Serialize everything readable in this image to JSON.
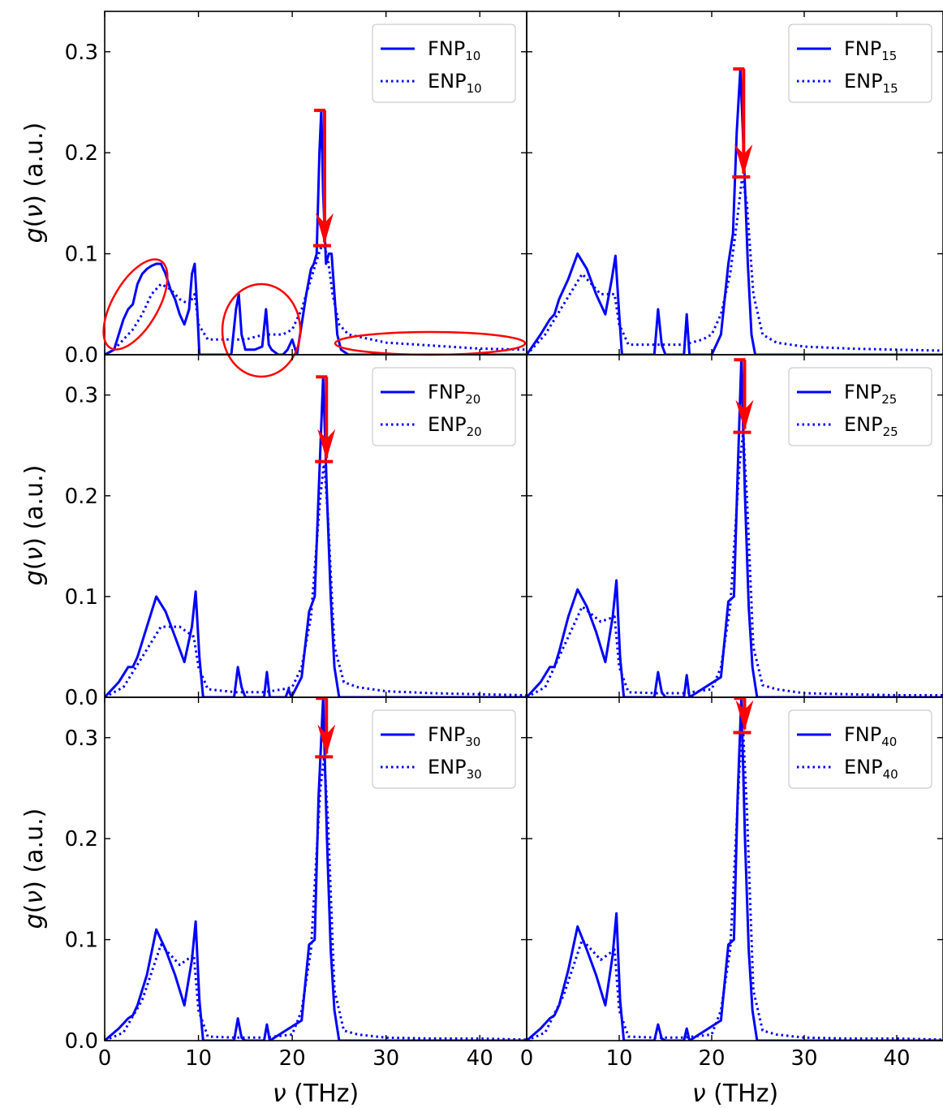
{
  "colors": {
    "fnp": "#0000ff",
    "enp": "#0000ff",
    "annotation": "#ff0000",
    "axes": "#000000"
  },
  "figure": {
    "xlabel_italic": "ν",
    "xlabel_units": "(THz)",
    "ylabel_func": "g",
    "ylabel_arg": "ν",
    "ylabel_units": "(a.u.)"
  },
  "chart_data": [
    {
      "type": "line",
      "panel": "top-left",
      "xlim": [
        0,
        45
      ],
      "ylim": [
        0,
        0.34
      ],
      "xticks": [
        "0",
        "10",
        "20",
        "30",
        "40"
      ],
      "yticks": [
        "0.0",
        "0.1",
        "0.2",
        "0.3"
      ],
      "legend": {
        "placement": "top-right",
        "fnp_base": "FNP",
        "enp_base": "ENP",
        "sub": "10"
      },
      "peak": {
        "x": 23.1,
        "fnp": 0.242,
        "enp": 0.108
      },
      "highlight_ellipses": 3,
      "series": [
        {
          "name": "FNP10",
          "style": "solid",
          "x": [
            0,
            1,
            1.5,
            2,
            2.5,
            3,
            3.5,
            4,
            4.5,
            5,
            5.5,
            6,
            6.5,
            7,
            7.5,
            8,
            8.5,
            9,
            9.3,
            9.6,
            9.9,
            10.1,
            10.5,
            13.5,
            14,
            14.3,
            14.6,
            15,
            16,
            16.8,
            17.2,
            17.5,
            17.8,
            18.5,
            19,
            19.5,
            20,
            20.5,
            21,
            21.5,
            22,
            22.3,
            22.6,
            22.9,
            23.1,
            23.3,
            23.6,
            23.9,
            24.2,
            24.5,
            24.8,
            25.2,
            26,
            45
          ],
          "y": [
            0,
            0.005,
            0.02,
            0.035,
            0.045,
            0.05,
            0.07,
            0.08,
            0.085,
            0.088,
            0.09,
            0.09,
            0.08,
            0.065,
            0.055,
            0.04,
            0.03,
            0.045,
            0.08,
            0.09,
            0.04,
            0,
            0,
            0,
            0.045,
            0.06,
            0.02,
            0.005,
            0.005,
            0.008,
            0.045,
            0.01,
            0.005,
            0,
            0,
            0.005,
            0.015,
            0,
            0.03,
            0.06,
            0.085,
            0.09,
            0.1,
            0.2,
            0.242,
            0.16,
            0.09,
            0.1,
            0.1,
            0.06,
            0.02,
            0.005,
            0,
            0
          ]
        },
        {
          "name": "ENP10",
          "style": "dotted",
          "x": [
            0,
            1,
            2,
            3,
            4,
            5,
            6,
            7,
            8,
            9,
            9.6,
            10,
            11,
            13,
            15,
            17,
            19,
            20,
            21,
            22,
            22.5,
            23,
            23.4,
            23.8,
            24.3,
            25,
            26,
            27,
            28,
            30,
            35,
            40,
            45
          ],
          "y": [
            0,
            0.005,
            0.015,
            0.025,
            0.04,
            0.06,
            0.07,
            0.065,
            0.055,
            0.05,
            0.06,
            0.03,
            0.015,
            0.015,
            0.015,
            0.02,
            0.02,
            0.025,
            0.045,
            0.075,
            0.09,
            0.105,
            0.108,
            0.095,
            0.06,
            0.03,
            0.02,
            0.018,
            0.016,
            0.012,
            0.009,
            0.006,
            0.005
          ]
        }
      ]
    },
    {
      "type": "line",
      "panel": "top-right",
      "xlim": [
        0,
        45
      ],
      "ylim": [
        0,
        0.34
      ],
      "xticks": [
        "0",
        "10",
        "20",
        "30",
        "40"
      ],
      "yticks": [
        "0.0",
        "0.1",
        "0.2",
        "0.3"
      ],
      "legend": {
        "placement": "top-right",
        "fnp_base": "FNP",
        "enp_base": "ENP",
        "sub": "15"
      },
      "peak": {
        "x": 23.1,
        "fnp": 0.283,
        "enp": 0.176
      },
      "series": [
        {
          "name": "FNP15",
          "style": "solid",
          "x": [
            0,
            1.5,
            2.5,
            3,
            3.5,
            4.5,
            5.5,
            6.5,
            7.5,
            8.5,
            9.2,
            9.6,
            10,
            10.3,
            13.8,
            14.2,
            14.6,
            15,
            17,
            17.3,
            17.6,
            20,
            21,
            21.8,
            22.3,
            22.7,
            23.1,
            23.5,
            23.9,
            24.3,
            24.7,
            45
          ],
          "y": [
            0,
            0.02,
            0.035,
            0.04,
            0.055,
            0.075,
            0.1,
            0.085,
            0.06,
            0.04,
            0.075,
            0.098,
            0.04,
            0,
            0,
            0.045,
            0.01,
            0,
            0,
            0.04,
            0,
            0,
            0.02,
            0.09,
            0.12,
            0.22,
            0.283,
            0.19,
            0.09,
            0.02,
            0,
            0
          ]
        },
        {
          "name": "ENP15",
          "style": "dotted",
          "x": [
            0,
            2,
            4,
            6,
            8,
            9.5,
            10,
            11,
            14,
            17,
            19,
            20,
            21,
            22,
            22.7,
            23.3,
            23.8,
            24.5,
            25.5,
            27,
            30,
            35,
            40,
            45
          ],
          "y": [
            0,
            0.02,
            0.05,
            0.08,
            0.06,
            0.06,
            0.03,
            0.01,
            0.01,
            0.01,
            0.015,
            0.02,
            0.04,
            0.08,
            0.13,
            0.176,
            0.15,
            0.06,
            0.02,
            0.012,
            0.008,
            0.006,
            0.005,
            0.004
          ]
        }
      ]
    },
    {
      "type": "line",
      "panel": "middle-left",
      "xlim": [
        0,
        45
      ],
      "ylim": [
        0,
        0.34
      ],
      "xticks": [
        "0",
        "10",
        "20",
        "30",
        "40"
      ],
      "yticks": [
        "0.0",
        "0.1",
        "0.2",
        "0.3"
      ],
      "legend": {
        "placement": "top-right",
        "fnp_base": "FNP",
        "enp_base": "ENP",
        "sub": "20"
      },
      "peak": {
        "x": 23.3,
        "fnp": 0.318,
        "enp": 0.234
      },
      "series": [
        {
          "name": "FNP20",
          "style": "solid",
          "x": [
            0,
            1.5,
            2.5,
            3,
            3.5,
            4.5,
            5.5,
            6.5,
            7.5,
            8.5,
            9.3,
            9.7,
            10.1,
            10.5,
            13.8,
            14.2,
            14.6,
            15,
            17,
            17.3,
            17.6,
            19.3,
            19.6,
            19.9,
            21,
            21.8,
            22.4,
            22.8,
            23.3,
            23.7,
            24.1,
            24.5,
            25,
            45
          ],
          "y": [
            0,
            0.015,
            0.03,
            0.03,
            0.04,
            0.07,
            0.1,
            0.085,
            0.06,
            0.035,
            0.07,
            0.105,
            0.04,
            0,
            0,
            0.03,
            0.01,
            0,
            0,
            0.025,
            0,
            0,
            0.008,
            0,
            0.02,
            0.085,
            0.1,
            0.2,
            0.318,
            0.2,
            0.1,
            0.03,
            0,
            0
          ]
        },
        {
          "name": "ENP20",
          "style": "dotted",
          "x": [
            0,
            2,
            4,
            6,
            8,
            9.5,
            10,
            11,
            14,
            17,
            19,
            20,
            21,
            22,
            23,
            23.4,
            23.8,
            24.5,
            25.5,
            27,
            30,
            35,
            40,
            45
          ],
          "y": [
            0,
            0.01,
            0.04,
            0.07,
            0.07,
            0.06,
            0.03,
            0.008,
            0.005,
            0.005,
            0.008,
            0.01,
            0.03,
            0.08,
            0.2,
            0.234,
            0.18,
            0.05,
            0.015,
            0.01,
            0.006,
            0.004,
            0.003,
            0.002
          ]
        }
      ]
    },
    {
      "type": "line",
      "panel": "middle-right",
      "xlim": [
        0,
        45
      ],
      "ylim": [
        0,
        0.34
      ],
      "xticks": [
        "0",
        "10",
        "20",
        "30",
        "40"
      ],
      "yticks": [
        "0.0",
        "0.1",
        "0.2",
        "0.3"
      ],
      "legend": {
        "placement": "top-right",
        "fnp_base": "FNP",
        "enp_base": "ENP",
        "sub": "25"
      },
      "peak": {
        "x": 23.2,
        "fnp": 0.335,
        "enp": 0.263
      },
      "series": [
        {
          "name": "FNP25",
          "style": "solid",
          "x": [
            0,
            1.5,
            2.5,
            3,
            3.5,
            4.5,
            5.5,
            6.5,
            7.5,
            8.5,
            9.3,
            9.7,
            10.1,
            10.5,
            13.8,
            14.2,
            14.6,
            15,
            17,
            17.3,
            17.6,
            21,
            21.8,
            22.4,
            22.8,
            23.2,
            23.6,
            24,
            24.4,
            24.9,
            45
          ],
          "y": [
            0,
            0.015,
            0.03,
            0.03,
            0.045,
            0.08,
            0.107,
            0.09,
            0.065,
            0.035,
            0.08,
            0.116,
            0.04,
            0,
            0,
            0.025,
            0.005,
            0,
            0,
            0.022,
            0,
            0.02,
            0.095,
            0.1,
            0.22,
            0.335,
            0.2,
            0.09,
            0.03,
            0,
            0
          ]
        },
        {
          "name": "ENP25",
          "style": "dotted",
          "x": [
            0,
            2,
            4,
            6,
            8,
            9.5,
            10,
            11,
            14,
            17,
            20,
            21,
            22,
            23,
            23.4,
            23.8,
            24.5,
            25.5,
            27,
            30,
            35,
            40,
            45
          ],
          "y": [
            0,
            0.01,
            0.05,
            0.09,
            0.075,
            0.08,
            0.03,
            0.005,
            0.004,
            0.004,
            0.008,
            0.03,
            0.09,
            0.23,
            0.263,
            0.2,
            0.05,
            0.012,
            0.008,
            0.004,
            0.003,
            0.002,
            0.002
          ]
        }
      ]
    },
    {
      "type": "line",
      "panel": "bottom-left",
      "xlim": [
        0,
        45
      ],
      "ylim": [
        0,
        0.34
      ],
      "xticks": [
        "0",
        "10",
        "20",
        "30",
        "40"
      ],
      "yticks": [
        "0.0",
        "0.1",
        "0.2",
        "0.3"
      ],
      "legend": {
        "placement": "top-right",
        "fnp_base": "FNP",
        "enp_base": "ENP",
        "sub": "30"
      },
      "peak": {
        "x": 23.3,
        "fnp": 0.34,
        "enp": 0.281
      },
      "series": [
        {
          "name": "FNP30",
          "style": "solid",
          "x": [
            0,
            1.5,
            2.5,
            3,
            3.5,
            4.5,
            5.5,
            6.5,
            7.5,
            8.5,
            9.3,
            9.7,
            10.1,
            10.5,
            13.8,
            14.2,
            14.6,
            15,
            17,
            17.3,
            17.6,
            21,
            21.8,
            22.4,
            22.8,
            23.3,
            23.7,
            24.1,
            24.5,
            25,
            45
          ],
          "y": [
            0,
            0.012,
            0.022,
            0.025,
            0.035,
            0.065,
            0.11,
            0.09,
            0.065,
            0.035,
            0.08,
            0.118,
            0.04,
            0,
            0,
            0.022,
            0.003,
            0,
            0,
            0.016,
            0,
            0.02,
            0.095,
            0.1,
            0.24,
            0.34,
            0.2,
            0.09,
            0.03,
            0,
            0
          ]
        },
        {
          "name": "ENP30",
          "style": "dotted",
          "x": [
            0,
            2,
            4,
            6,
            8,
            9.5,
            10,
            11,
            14,
            17,
            20,
            21,
            22,
            23,
            23.4,
            23.8,
            24.5,
            25.5,
            27,
            30,
            35,
            40,
            45
          ],
          "y": [
            0,
            0.008,
            0.04,
            0.095,
            0.075,
            0.085,
            0.03,
            0.004,
            0.003,
            0.003,
            0.006,
            0.03,
            0.09,
            0.25,
            0.281,
            0.22,
            0.05,
            0.01,
            0.006,
            0.003,
            0.002,
            0.002,
            0.001
          ]
        }
      ]
    },
    {
      "type": "line",
      "panel": "bottom-right",
      "xlim": [
        0,
        45
      ],
      "ylim": [
        0,
        0.34
      ],
      "xticks": [
        "0",
        "10",
        "20",
        "30",
        "40"
      ],
      "yticks": [
        "0.0",
        "0.1",
        "0.2",
        "0.3"
      ],
      "legend": {
        "placement": "top-right",
        "fnp_base": "FNP",
        "enp_base": "ENP",
        "sub": "40"
      },
      "peak": {
        "x": 23.2,
        "fnp": 0.34,
        "enp": 0.305
      },
      "series": [
        {
          "name": "FNP40",
          "style": "solid",
          "x": [
            0,
            1.5,
            2.5,
            3,
            3.5,
            4.5,
            5.5,
            6.5,
            7.5,
            8.5,
            9.3,
            9.7,
            10.1,
            10.5,
            13.8,
            14.2,
            14.6,
            15,
            17,
            17.3,
            17.6,
            21,
            21.8,
            22.4,
            22.8,
            23.2,
            23.6,
            24,
            24.4,
            24.9,
            45
          ],
          "y": [
            0,
            0.012,
            0.022,
            0.025,
            0.035,
            0.07,
            0.113,
            0.09,
            0.065,
            0.035,
            0.085,
            0.126,
            0.04,
            0,
            0,
            0.016,
            0.002,
            0,
            0,
            0.012,
            0,
            0.02,
            0.095,
            0.1,
            0.24,
            0.34,
            0.2,
            0.09,
            0.03,
            0,
            0
          ]
        },
        {
          "name": "ENP40",
          "style": "dotted",
          "x": [
            0,
            2,
            4,
            6,
            8,
            9.5,
            10,
            11,
            14,
            17,
            20,
            21,
            22,
            23,
            23.4,
            23.8,
            24.5,
            25.5,
            27,
            30,
            35,
            40,
            45
          ],
          "y": [
            0,
            0.008,
            0.045,
            0.1,
            0.08,
            0.09,
            0.03,
            0.004,
            0.003,
            0.003,
            0.006,
            0.03,
            0.09,
            0.27,
            0.305,
            0.23,
            0.05,
            0.01,
            0.006,
            0.003,
            0.002,
            0.002,
            0.001
          ]
        }
      ]
    }
  ]
}
